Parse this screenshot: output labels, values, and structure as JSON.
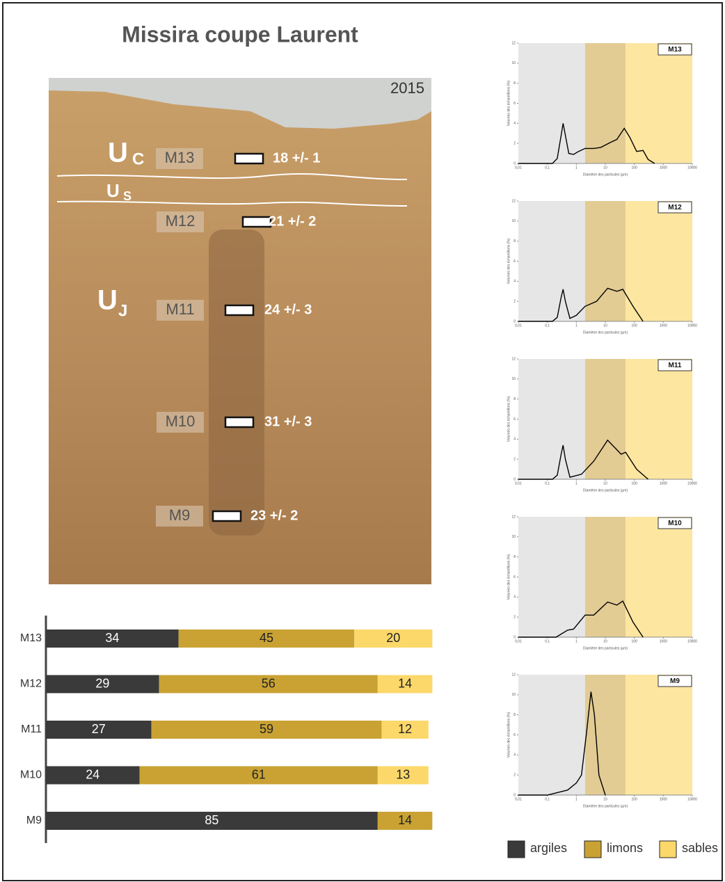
{
  "title": "Missira coupe Laurent",
  "photo": {
    "year": "2015",
    "units": [
      {
        "main": "U",
        "sub": "C"
      },
      {
        "main": "U",
        "sub": "S"
      },
      {
        "main": "U",
        "sub": "J"
      }
    ],
    "samples": [
      {
        "name": "M13",
        "age": "18 +/- 1"
      },
      {
        "name": "M12",
        "age": "21 +/- 2"
      },
      {
        "name": "M11",
        "age": "24 +/- 3"
      },
      {
        "name": "M10",
        "age": "31 +/- 3"
      },
      {
        "name": "M9",
        "age": "23 +/- 2"
      }
    ]
  },
  "chart_data": [
    {
      "type": "bar",
      "orientation": "horizontal",
      "stacked": true,
      "categories": [
        "M13",
        "M12",
        "M11",
        "M10",
        "M9"
      ],
      "xlim": [
        0,
        100
      ],
      "series": [
        {
          "name": "argiles",
          "color": "#3a3a3a",
          "values": [
            34,
            29,
            27,
            24,
            85
          ]
        },
        {
          "name": "limons",
          "color": "#c9a233",
          "values": [
            45,
            56,
            59,
            61,
            14
          ]
        },
        {
          "name": "sables",
          "color": "#fcd86a",
          "values": [
            20,
            14,
            12,
            13,
            null
          ]
        }
      ]
    },
    {
      "type": "line",
      "title": "M13",
      "x_label": "Diamètre des particules (µm)",
      "y_label": "Volumes des échantillons (%)",
      "xscale": "log",
      "color": "#000000",
      "xlim": [
        0.01,
        10000
      ],
      "ylim": [
        0,
        12
      ],
      "yticks": [
        0,
        2,
        4,
        6,
        8,
        10,
        12
      ],
      "xticks": [
        {
          "value": 0.01,
          "label": "0,01"
        },
        {
          "value": 0.1,
          "label": "0,1"
        },
        1,
        10,
        100,
        1000,
        10000
      ],
      "bands": [
        {
          "from": 0.01,
          "to": 2,
          "color": "#e6e6e6"
        },
        {
          "from": 2,
          "to": 50,
          "color": "#e2cc94"
        },
        {
          "from": 50,
          "to": 10000,
          "color": "#fde6a0"
        }
      ],
      "x": [
        0.01,
        0.15,
        0.22,
        0.3,
        0.35,
        0.42,
        0.55,
        0.8,
        1.2,
        2,
        4,
        7,
        15,
        25,
        45,
        70,
        120,
        200,
        300,
        500
      ],
      "values": [
        0,
        0,
        0.5,
        2.8,
        4.0,
        2.8,
        1.0,
        0.9,
        1.2,
        1.5,
        1.5,
        1.6,
        2.1,
        2.4,
        3.5,
        2.6,
        1.2,
        1.3,
        0.4,
        0
      ]
    },
    {
      "type": "line",
      "title": "M12",
      "x_label": "Diamètre des particules (µm)",
      "y_label": "Volumes des échantillons (%)",
      "xscale": "log",
      "color": "#000000",
      "xlim": [
        0.01,
        10000
      ],
      "ylim": [
        0,
        12
      ],
      "yticks": [
        0,
        2,
        4,
        6,
        8,
        10,
        12
      ],
      "xticks": [
        {
          "value": 0.01,
          "label": "0,01"
        },
        {
          "value": 0.1,
          "label": "0,1"
        },
        1,
        10,
        100,
        1000,
        10000
      ],
      "bands": [
        {
          "from": 0.01,
          "to": 2,
          "color": "#e6e6e6"
        },
        {
          "from": 2,
          "to": 50,
          "color": "#e2cc94"
        },
        {
          "from": 50,
          "to": 10000,
          "color": "#fde6a0"
        }
      ],
      "x": [
        0.01,
        0.15,
        0.22,
        0.3,
        0.35,
        0.42,
        0.6,
        1,
        2,
        5,
        12,
        25,
        40,
        90,
        200
      ],
      "values": [
        0,
        0,
        0.4,
        2.4,
        3.2,
        2.0,
        0.3,
        0.6,
        1.5,
        2.0,
        3.3,
        3.0,
        3.2,
        1.5,
        0
      ]
    },
    {
      "type": "line",
      "title": "M11",
      "x_label": "Diamètre des particules (µm)",
      "y_label": "Volumes des échantillons (%)",
      "xscale": "log",
      "color": "#000000",
      "xlim": [
        0.01,
        10000
      ],
      "ylim": [
        0,
        12
      ],
      "yticks": [
        0,
        2,
        4,
        6,
        8,
        10,
        12
      ],
      "xticks": [
        {
          "value": 0.01,
          "label": "0,01"
        },
        {
          "value": 0.1,
          "label": "0,1"
        },
        1,
        10,
        100,
        1000,
        10000
      ],
      "bands": [
        {
          "from": 0.01,
          "to": 2,
          "color": "#e6e6e6"
        },
        {
          "from": 2,
          "to": 50,
          "color": "#e2cc94"
        },
        {
          "from": 50,
          "to": 10000,
          "color": "#fde6a0"
        }
      ],
      "x": [
        0.01,
        0.15,
        0.22,
        0.3,
        0.35,
        0.42,
        0.6,
        1.5,
        4,
        12,
        35,
        50,
        120,
        300
      ],
      "values": [
        0,
        0,
        0.4,
        2.5,
        3.4,
        2.0,
        0.2,
        0.5,
        1.8,
        3.9,
        2.5,
        2.7,
        1.0,
        0
      ]
    },
    {
      "type": "line",
      "title": "M10",
      "x_label": "Diamètre des particules (µm)",
      "y_label": "Volumes des échantillons (%)",
      "xscale": "log",
      "color": "#000000",
      "xlim": [
        0.01,
        10000
      ],
      "ylim": [
        0,
        12
      ],
      "yticks": [
        0,
        2,
        4,
        6,
        8,
        10,
        12
      ],
      "xticks": [
        {
          "value": 0.01,
          "label": "0,01"
        },
        {
          "value": 0.1,
          "label": "0,1"
        },
        1,
        10,
        100,
        1000,
        10000
      ],
      "bands": [
        {
          "from": 0.01,
          "to": 2,
          "color": "#e6e6e6"
        },
        {
          "from": 2,
          "to": 50,
          "color": "#e2cc94"
        },
        {
          "from": 50,
          "to": 10000,
          "color": "#fde6a0"
        }
      ],
      "x": [
        0.01,
        0.2,
        0.5,
        0.8,
        2,
        4,
        12,
        25,
        40,
        90,
        200
      ],
      "values": [
        0,
        0,
        0.7,
        0.8,
        2.2,
        2.2,
        3.5,
        3.2,
        3.6,
        1.5,
        0
      ]
    },
    {
      "type": "line",
      "title": "M9",
      "x_label": "Diamètre des particules (µm)",
      "y_label": "Volumes des échantillons (%)",
      "xscale": "log",
      "color": "#000000",
      "xlim": [
        0.01,
        10000
      ],
      "ylim": [
        0,
        12
      ],
      "yticks": [
        0,
        2,
        4,
        6,
        8,
        10,
        12
      ],
      "xticks": [
        {
          "value": 0.01,
          "label": "0,01"
        },
        {
          "value": 0.1,
          "label": "0,1"
        },
        1,
        10,
        100,
        1000,
        10000
      ],
      "bands": [
        {
          "from": 0.01,
          "to": 2,
          "color": "#e6e6e6"
        },
        {
          "from": 2,
          "to": 50,
          "color": "#e2cc94"
        },
        {
          "from": 50,
          "to": 10000,
          "color": "#fde6a0"
        }
      ],
      "x": [
        0.01,
        0.1,
        0.5,
        1,
        1.5,
        2.2,
        3.2,
        4.2,
        6,
        10
      ],
      "values": [
        0,
        0,
        0.5,
        1.2,
        2,
        6,
        10.3,
        8,
        2,
        0
      ]
    }
  ]
}
